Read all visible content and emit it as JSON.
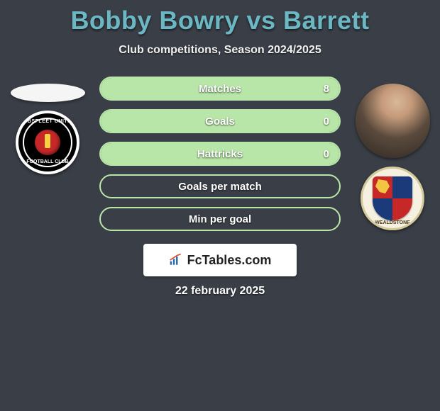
{
  "title": "Bobby Bowry vs Barrett",
  "subtitle": "Club competitions, Season 2024/2025",
  "date_text": "22 february 2025",
  "brand": {
    "name": "FcTables.com"
  },
  "colors": {
    "background": "#3a3f47",
    "title_color": "#6bb8c4",
    "bar_border": "#b8e6a8",
    "bar_fill": "#b8e6a8",
    "text_light": "#ffffff"
  },
  "left_player": {
    "name": "Bobby Bowry",
    "club_name": "Ebbsfleet United",
    "club_text_top": "EBBSFLEET UNITED",
    "club_text_bottom": "FOOTBALL CLUB"
  },
  "right_player": {
    "name": "Barrett",
    "club_name": "Wealdstone",
    "club_text_bottom": "WEALDSTONE"
  },
  "stats": [
    {
      "label": "Matches",
      "left_val": "",
      "right_val": "8",
      "left_pct": 0,
      "right_pct": 100
    },
    {
      "label": "Goals",
      "left_val": "",
      "right_val": "0",
      "left_pct": 0,
      "right_pct": 100
    },
    {
      "label": "Hattricks",
      "left_val": "",
      "right_val": "0",
      "left_pct": 0,
      "right_pct": 100
    },
    {
      "label": "Goals per match",
      "left_val": "",
      "right_val": "",
      "left_pct": 0,
      "right_pct": 0
    },
    {
      "label": "Min per goal",
      "left_val": "",
      "right_val": "",
      "left_pct": 0,
      "right_pct": 0
    }
  ]
}
